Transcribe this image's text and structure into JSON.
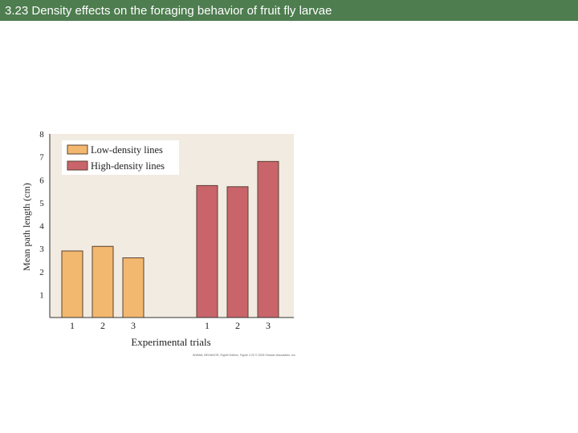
{
  "slide": {
    "title": "3.23  Density effects on the foraging behavior of fruit fly larvae",
    "credit": "ANIMAL BEHAVIOR, Eighth Edition, Figure 3.23  © 2005 Sinauer Associates, Inc."
  },
  "colors": {
    "title_bg": "#4e7d4f",
    "plot_bg": "#f2ebe1",
    "low_density": "#f2b86f",
    "high_density": "#c9646b",
    "bar_outline": "#5a4030"
  },
  "chart_data": {
    "type": "bar",
    "title": "",
    "xlabel": "Experimental trials",
    "ylabel": "Mean path length (cm)",
    "ylim": [
      0,
      8
    ],
    "yticks": [
      1,
      2,
      3,
      4,
      5,
      6,
      7,
      8
    ],
    "grid": false,
    "legend_position": "top-left",
    "categories": [
      "1",
      "2",
      "3"
    ],
    "series": [
      {
        "name": "Low-density lines",
        "values": [
          2.9,
          3.1,
          2.6
        ]
      },
      {
        "name": "High-density lines",
        "values": [
          5.75,
          5.7,
          6.8
        ]
      }
    ]
  }
}
